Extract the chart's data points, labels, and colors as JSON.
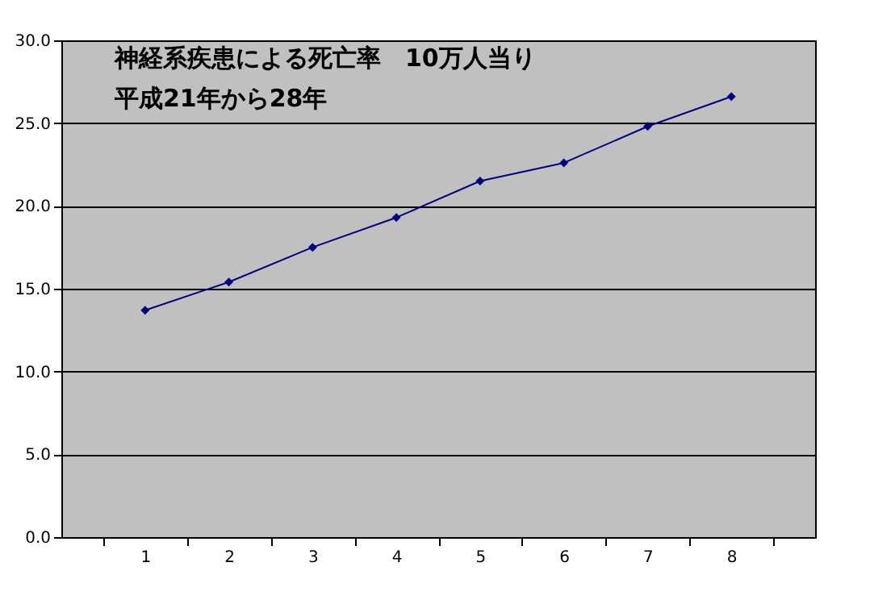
{
  "chart_data": {
    "type": "line",
    "title": "神経系疾患による死亡率　10万人当り",
    "subtitle": "平成21年から28年",
    "categories": [
      "1",
      "2",
      "3",
      "4",
      "5",
      "6",
      "7",
      "8"
    ],
    "series": [
      {
        "color": "#000080",
        "values": [
          13.7,
          15.4,
          17.5,
          19.3,
          21.5,
          22.6,
          24.8,
          26.6
        ]
      }
    ],
    "ylim": [
      0,
      30
    ],
    "yticks": [
      {
        "value": 0,
        "label": "0.0"
      },
      {
        "value": 5,
        "label": "5.0"
      },
      {
        "value": 10,
        "label": "10.0"
      },
      {
        "value": 15,
        "label": "15.0"
      },
      {
        "value": 20,
        "label": "20.0"
      },
      {
        "value": 25,
        "label": "25.0"
      },
      {
        "value": 30,
        "label": "30.0"
      }
    ],
    "grid": "y",
    "legend": false,
    "marker": "diamond",
    "line_style": "solid"
  }
}
